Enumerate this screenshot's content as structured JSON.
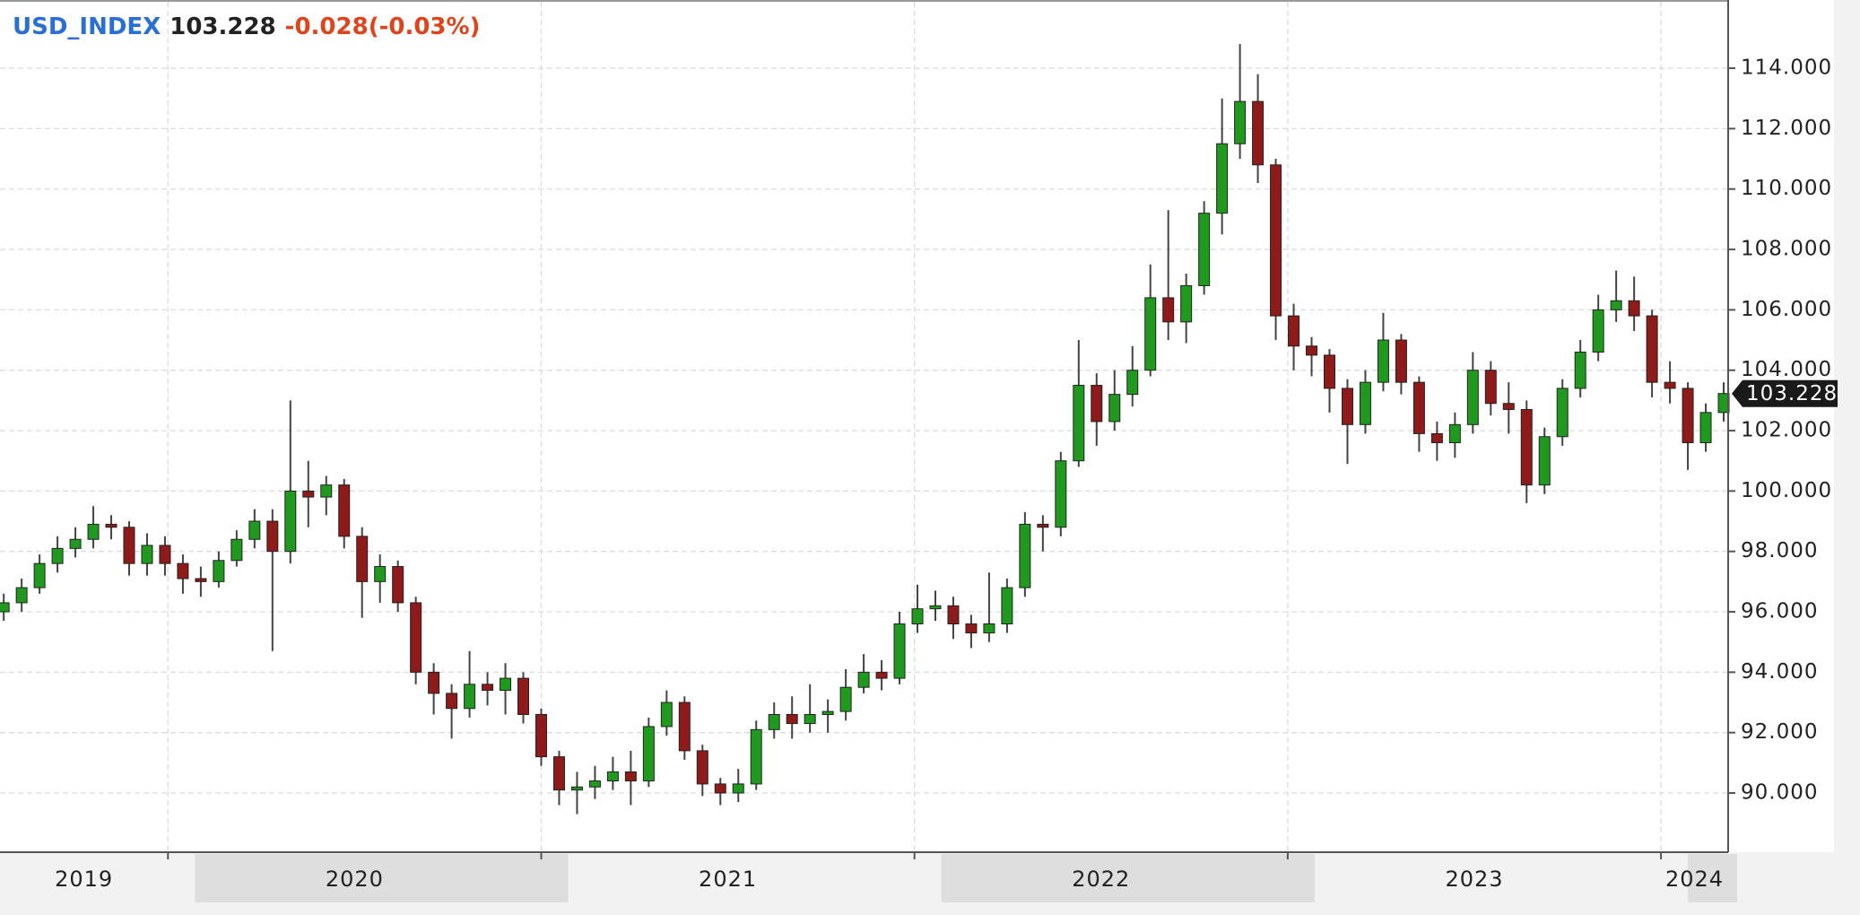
{
  "chart_data": {
    "type": "candlestick",
    "symbol": "USD_INDEX",
    "change": "-0.028(-0.03%)",
    "x": [
      2019.56,
      2019.608,
      2019.656,
      2019.704,
      2019.752,
      2019.8,
      2019.848,
      2019.896,
      2019.944,
      2019.992,
      2020.04,
      2020.088,
      2020.136,
      2020.184,
      2020.232,
      2020.28,
      2020.328,
      2020.376,
      2020.424,
      2020.472,
      2020.52,
      2020.568,
      2020.616,
      2020.664,
      2020.712,
      2020.76,
      2020.808,
      2020.856,
      2020.904,
      2020.952,
      2021.0,
      2021.048,
      2021.096,
      2021.144,
      2021.192,
      2021.24,
      2021.288,
      2021.336,
      2021.384,
      2021.432,
      2021.48,
      2021.528,
      2021.576,
      2021.624,
      2021.672,
      2021.72,
      2021.768,
      2021.816,
      2021.864,
      2021.912,
      2021.96,
      2022.008,
      2022.056,
      2022.104,
      2022.152,
      2022.2,
      2022.248,
      2022.296,
      2022.344,
      2022.392,
      2022.44,
      2022.488,
      2022.536,
      2022.584,
      2022.632,
      2022.68,
      2022.728,
      2022.776,
      2022.824,
      2022.872,
      2022.92,
      2022.968,
      2023.016,
      2023.064,
      2023.112,
      2023.16,
      2023.208,
      2023.256,
      2023.304,
      2023.352,
      2023.4,
      2023.448,
      2023.496,
      2023.544,
      2023.592,
      2023.64,
      2023.688,
      2023.736,
      2023.784,
      2023.832,
      2023.88,
      2023.928,
      2023.976,
      2024.024,
      2024.072,
      2024.12,
      2024.168
    ],
    "open": [
      96.0,
      96.3,
      96.8,
      97.6,
      98.1,
      98.4,
      98.9,
      98.8,
      97.6,
      98.2,
      97.6,
      97.1,
      97.0,
      97.7,
      98.4,
      99.0,
      98.0,
      100.0,
      99.8,
      100.2,
      98.5,
      97.0,
      97.5,
      96.3,
      94.0,
      93.3,
      92.8,
      93.6,
      93.4,
      93.8,
      92.6,
      91.2,
      90.1,
      90.2,
      90.4,
      90.7,
      90.4,
      92.2,
      93.0,
      91.4,
      90.3,
      90.0,
      90.3,
      92.1,
      92.6,
      92.3,
      92.6,
      92.7,
      93.5,
      94.0,
      93.8,
      95.6,
      96.1,
      96.2,
      95.6,
      95.3,
      95.6,
      96.8,
      98.9,
      98.8,
      101.0,
      103.5,
      102.3,
      103.2,
      104.0,
      106.4,
      105.6,
      106.8,
      109.2,
      111.5,
      112.9,
      110.8,
      105.8,
      104.8,
      104.5,
      103.4,
      102.2,
      103.6,
      105.0,
      103.6,
      101.9,
      101.6,
      102.2,
      104.0,
      102.9,
      102.7,
      100.2,
      101.8,
      103.4,
      104.6,
      106.0,
      106.3,
      105.8,
      103.6,
      103.4,
      101.6,
      102.6
    ],
    "high": [
      96.6,
      97.1,
      97.9,
      98.5,
      98.8,
      99.5,
      99.2,
      99.0,
      98.6,
      98.5,
      97.9,
      97.5,
      98.0,
      98.7,
      99.4,
      99.4,
      103.0,
      101.0,
      100.5,
      100.4,
      98.8,
      97.9,
      97.7,
      96.5,
      94.3,
      93.6,
      94.7,
      94.0,
      94.3,
      94.0,
      92.8,
      91.4,
      90.7,
      90.9,
      91.2,
      91.4,
      92.5,
      93.4,
      93.2,
      91.6,
      90.5,
      90.8,
      92.4,
      93.0,
      93.2,
      93.6,
      93.1,
      94.1,
      94.6,
      94.4,
      96.0,
      96.9,
      96.7,
      96.5,
      95.9,
      97.3,
      97.1,
      99.3,
      99.2,
      101.3,
      105.0,
      103.9,
      104.0,
      104.8,
      107.5,
      109.3,
      107.2,
      109.6,
      113.0,
      114.8,
      113.8,
      111.0,
      106.2,
      105.1,
      104.7,
      103.7,
      104.0,
      105.9,
      105.2,
      103.8,
      102.3,
      102.6,
      104.6,
      104.3,
      103.6,
      103.0,
      102.1,
      103.7,
      105.0,
      106.5,
      107.3,
      107.1,
      106.0,
      104.3,
      103.6,
      102.9,
      103.6
    ],
    "low": [
      95.7,
      96.0,
      96.6,
      97.3,
      97.8,
      98.1,
      98.4,
      97.2,
      97.2,
      97.2,
      96.6,
      96.5,
      96.8,
      97.5,
      98.1,
      94.7,
      97.6,
      98.8,
      99.2,
      98.1,
      95.8,
      96.3,
      96.0,
      93.6,
      92.6,
      91.8,
      92.5,
      92.9,
      92.6,
      92.3,
      90.9,
      89.6,
      89.3,
      89.8,
      90.1,
      89.6,
      90.2,
      91.9,
      91.1,
      89.9,
      89.6,
      89.7,
      90.1,
      91.8,
      91.8,
      92.0,
      92.0,
      92.4,
      93.3,
      93.4,
      93.6,
      95.3,
      95.7,
      95.1,
      94.8,
      95.0,
      95.3,
      96.5,
      98.0,
      98.5,
      100.8,
      101.5,
      102.0,
      102.8,
      103.8,
      105.0,
      104.9,
      106.5,
      108.5,
      111.0,
      110.2,
      105.0,
      104.0,
      103.8,
      102.6,
      100.9,
      101.9,
      103.3,
      103.2,
      101.3,
      101.0,
      101.1,
      101.9,
      102.5,
      101.9,
      99.6,
      99.9,
      101.5,
      103.1,
      104.3,
      105.6,
      105.3,
      103.1,
      102.9,
      100.7,
      101.3,
      102.3
    ],
    "close": [
      96.3,
      96.8,
      97.6,
      98.1,
      98.4,
      98.9,
      98.8,
      97.6,
      98.2,
      97.6,
      97.1,
      97.0,
      97.7,
      98.4,
      99.0,
      98.0,
      100.0,
      99.8,
      100.2,
      98.5,
      97.0,
      97.5,
      96.3,
      94.0,
      93.3,
      92.8,
      93.6,
      93.4,
      93.8,
      92.6,
      91.2,
      90.1,
      90.2,
      90.4,
      90.7,
      90.4,
      92.2,
      93.0,
      91.4,
      90.3,
      90.0,
      90.3,
      92.1,
      92.6,
      92.3,
      92.6,
      92.7,
      93.5,
      94.0,
      93.8,
      95.6,
      96.1,
      96.2,
      95.6,
      95.3,
      95.6,
      96.8,
      98.9,
      98.8,
      101.0,
      103.5,
      102.3,
      103.2,
      104.0,
      106.4,
      105.6,
      106.8,
      109.2,
      111.5,
      112.9,
      110.8,
      105.8,
      104.8,
      104.5,
      103.4,
      102.2,
      103.6,
      105.0,
      103.6,
      101.9,
      101.6,
      102.2,
      104.0,
      102.9,
      102.7,
      100.2,
      101.8,
      103.4,
      104.6,
      106.0,
      106.3,
      105.8,
      103.6,
      103.4,
      101.6,
      102.6,
      103.228
    ],
    "up_color": "#1f9a1f",
    "down_color": "#8e1a1a",
    "wick_color": "#444444",
    "xlim": [
      2019.55,
      2024.18
    ],
    "xticks": [
      2019,
      2020,
      2021,
      2022,
      2023,
      2024
    ],
    "ylim": [
      88.04,
      116.2
    ],
    "yticks": [
      {
        "value": 90,
        "label": "90.000"
      },
      {
        "value": 92,
        "label": "92.000"
      },
      {
        "value": 94,
        "label": "94.000"
      },
      {
        "value": 96,
        "label": "96.000"
      },
      {
        "value": 98,
        "label": "98.000"
      },
      {
        "value": 100,
        "label": "100.000"
      },
      {
        "value": 102,
        "label": "102.000"
      },
      {
        "value": 104,
        "label": "104.000"
      },
      {
        "value": 106,
        "label": "106.000"
      },
      {
        "value": 108,
        "label": "108.000"
      },
      {
        "value": 110,
        "label": "110.000"
      },
      {
        "value": 112,
        "label": "112.000"
      },
      {
        "value": 114,
        "label": "114.000"
      }
    ],
    "grid": true,
    "last_price_tag": true
  }
}
